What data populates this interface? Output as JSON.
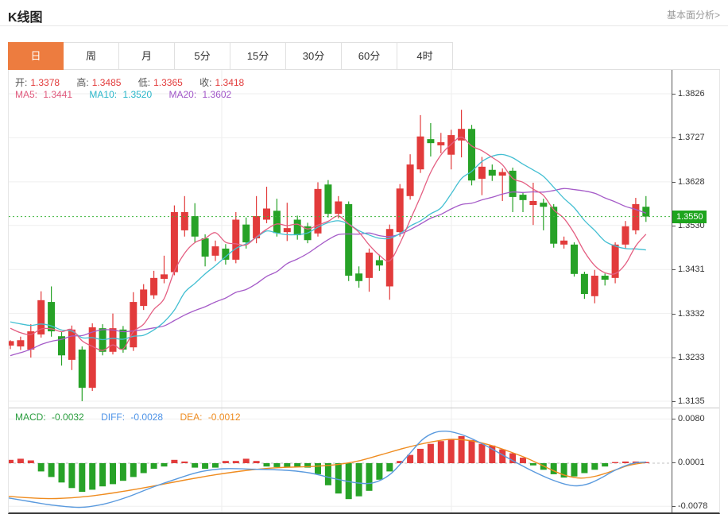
{
  "header": {
    "title": "K线图",
    "link": "基本面分析>"
  },
  "tabs": {
    "items": [
      "日",
      "周",
      "月",
      "5分",
      "15分",
      "30分",
      "60分",
      "4时"
    ],
    "active_index": 0
  },
  "ohlc_bar": {
    "open_label": "开:",
    "open": "1.3378",
    "high_label": "高:",
    "high": "1.3485",
    "low_label": "低:",
    "low": "1.3365",
    "close_label": "收:",
    "close": "1.3418"
  },
  "ma_bar": {
    "ma5_label": "MA5:",
    "ma5": "1.3441",
    "ma10_label": "MA10:",
    "ma10": "1.3520",
    "ma20_label": "MA20:",
    "ma20": "1.3602"
  },
  "macd_bar": {
    "macd_label": "MACD:",
    "macd": "-0.0032",
    "diff_label": "DIFF:",
    "diff": "-0.0028",
    "dea_label": "DEA:",
    "dea": "-0.0012"
  },
  "colors": {
    "up": "#e23b3b",
    "down": "#27a227",
    "ma5": "#e45f82",
    "ma10": "#43bfd2",
    "ma20": "#a55bc8",
    "ma5_text": "#e05a7d",
    "ma10_text": "#2ab6c9",
    "ma20_text": "#a156c8",
    "macd_text": "#2b9e3f",
    "diff_text": "#4f94e8",
    "dea_text": "#ef8c20",
    "diff_line": "#5a9ade",
    "dea_line": "#ef8c20",
    "price_line": "#3db53d",
    "price_badge": "#1ea51e",
    "grid": "#efefef",
    "vgrid": "#ececec",
    "zero_dash": "#c0c0c0",
    "tab_active": "#ed7c3f",
    "value_red": "#e23b3b"
  },
  "chart_data": {
    "type": "candlestick+macd",
    "title": "K线图 (daily K-line with MA5/MA10/MA20 and MACD)",
    "price_axis": {
      "ticks": [
        1.3826,
        1.3727,
        1.3628,
        1.353,
        1.3431,
        1.3332,
        1.3233,
        1.3135
      ],
      "current_price": 1.355,
      "grid": true,
      "position": "right"
    },
    "macd_axis": {
      "ticks": [
        0.008,
        0.0001,
        -0.0078
      ],
      "position": "right"
    },
    "v_gridlines_x": [
      268,
      557
    ],
    "candles_format": [
      "open",
      "high",
      "low",
      "close"
    ],
    "candles": [
      [
        1.326,
        1.3272,
        1.3252,
        1.327
      ],
      [
        1.3258,
        1.328,
        1.325,
        1.3272
      ],
      [
        1.3251,
        1.3308,
        1.3233,
        1.3292
      ],
      [
        1.3285,
        1.3382,
        1.3278,
        1.3362
      ],
      [
        1.3358,
        1.3393,
        1.328,
        1.3292
      ],
      [
        1.3281,
        1.3292,
        1.3215,
        1.3238
      ],
      [
        1.3228,
        1.3305,
        1.3205,
        1.3296
      ],
      [
        1.3251,
        1.3258,
        1.3135,
        1.3165
      ],
      [
        1.3165,
        1.331,
        1.3158,
        1.3301
      ],
      [
        1.3299,
        1.3308,
        1.3238,
        1.3246
      ],
      [
        1.3246,
        1.3332,
        1.324,
        1.3299
      ],
      [
        1.3296,
        1.3304,
        1.3244,
        1.3251
      ],
      [
        1.3256,
        1.338,
        1.3248,
        1.3358
      ],
      [
        1.3349,
        1.3398,
        1.334,
        1.3386
      ],
      [
        1.3373,
        1.3428,
        1.3365,
        1.3412
      ],
      [
        1.341,
        1.3462,
        1.34,
        1.342
      ],
      [
        1.3425,
        1.3575,
        1.3418,
        1.356
      ],
      [
        1.3519,
        1.3596,
        1.3505,
        1.356
      ],
      [
        1.3551,
        1.358,
        1.3492,
        1.3505
      ],
      [
        1.3501,
        1.351,
        1.3438,
        1.346
      ],
      [
        1.3462,
        1.3496,
        1.345,
        1.3483
      ],
      [
        1.3478,
        1.3488,
        1.3442,
        1.3453
      ],
      [
        1.3453,
        1.356,
        1.3445,
        1.3543
      ],
      [
        1.3532,
        1.3548,
        1.3478,
        1.3492
      ],
      [
        1.3501,
        1.3596,
        1.349,
        1.3551
      ],
      [
        1.3543,
        1.3617,
        1.3535,
        1.3568
      ],
      [
        1.3563,
        1.359,
        1.3505,
        1.3513
      ],
      [
        1.3515,
        1.3581,
        1.3495,
        1.3524
      ],
      [
        1.3543,
        1.3552,
        1.3498,
        1.3508
      ],
      [
        1.3528,
        1.3536,
        1.349,
        1.3497
      ],
      [
        1.3512,
        1.3627,
        1.3505,
        1.3612
      ],
      [
        1.3622,
        1.3632,
        1.3548,
        1.3556
      ],
      [
        1.3556,
        1.3596,
        1.3546,
        1.3584
      ],
      [
        1.3578,
        1.3584,
        1.3405,
        1.3417
      ],
      [
        1.3422,
        1.3438,
        1.339,
        1.3405
      ],
      [
        1.3412,
        1.3478,
        1.3381,
        1.3469
      ],
      [
        1.3452,
        1.3464,
        1.3428,
        1.344
      ],
      [
        1.3393,
        1.3532,
        1.3363,
        1.3522
      ],
      [
        1.3515,
        1.3623,
        1.3505,
        1.3613
      ],
      [
        1.3596,
        1.369,
        1.3588,
        1.3667
      ],
      [
        1.3656,
        1.3778,
        1.3648,
        1.373
      ],
      [
        1.3724,
        1.376,
        1.3685,
        1.3715
      ],
      [
        1.371,
        1.3738,
        1.3692,
        1.3717
      ],
      [
        1.3689,
        1.3745,
        1.3656,
        1.3733
      ],
      [
        1.3721,
        1.379,
        1.3683,
        1.3747
      ],
      [
        1.3747,
        1.3756,
        1.362,
        1.3631
      ],
      [
        1.3635,
        1.3684,
        1.3598,
        1.3662
      ],
      [
        1.3655,
        1.3667,
        1.363,
        1.3642
      ],
      [
        1.3642,
        1.3658,
        1.3585,
        1.365
      ],
      [
        1.3653,
        1.366,
        1.356,
        1.3594
      ],
      [
        1.3599,
        1.3605,
        1.356,
        1.3587
      ],
      [
        1.3576,
        1.3626,
        1.3531,
        1.3585
      ],
      [
        1.3581,
        1.359,
        1.3519,
        1.3572
      ],
      [
        1.3572,
        1.3578,
        1.348,
        1.3489
      ],
      [
        1.3487,
        1.3505,
        1.3478,
        1.3496
      ],
      [
        1.3487,
        1.3492,
        1.3415,
        1.3421
      ],
      [
        1.3421,
        1.3426,
        1.3365,
        1.3376
      ],
      [
        1.3371,
        1.343,
        1.3355,
        1.3417
      ],
      [
        1.3417,
        1.3422,
        1.3395,
        1.3408
      ],
      [
        1.3412,
        1.3492,
        1.34,
        1.3487
      ],
      [
        1.3487,
        1.354,
        1.3478,
        1.3528
      ],
      [
        1.3519,
        1.3592,
        1.351,
        1.3578
      ],
      [
        1.3572,
        1.3596,
        1.3538,
        1.355
      ]
    ],
    "ma_periods": [
      5,
      10,
      20
    ],
    "ma_seed_closes": [
      1.3135,
      1.3138,
      1.3142,
      1.3145,
      1.3148,
      1.315,
      1.3148,
      1.3145,
      1.3142,
      1.314,
      1.3315,
      1.332,
      1.3325,
      1.333,
      1.3335,
      1.333,
      1.3322,
      1.3312,
      1.33,
      1.329
    ],
    "macd_hist": [
      0.0006,
      0.0008,
      0.0005,
      -0.0015,
      -0.0025,
      -0.0035,
      -0.0045,
      -0.0052,
      -0.0048,
      -0.0042,
      -0.0038,
      -0.0032,
      -0.0025,
      -0.0018,
      -0.001,
      -0.0006,
      0.0006,
      0.0003,
      -0.0008,
      -0.001,
      -0.0008,
      0.0004,
      0.0004,
      0.0008,
      0.0004,
      -0.0006,
      -0.0007,
      -0.0007,
      -0.0007,
      -0.0008,
      -0.002,
      -0.004,
      -0.0055,
      -0.0065,
      -0.006,
      -0.005,
      -0.003,
      -0.0015,
      0.0004,
      0.0015,
      0.0026,
      0.0035,
      0.004,
      0.0044,
      0.0049,
      0.0042,
      0.0035,
      0.0032,
      0.0025,
      0.0018,
      0.001,
      -0.0004,
      -0.0012,
      -0.002,
      -0.0026,
      -0.0024,
      -0.0018,
      -0.0012,
      -0.0006,
      0.0002,
      0.0003,
      0.0003,
      0.0002
    ],
    "diff_line": [
      [
        0,
        -0.0063
      ],
      [
        25,
        -0.0069
      ],
      [
        55,
        -0.0076
      ],
      [
        90,
        -0.008
      ],
      [
        120,
        -0.0074
      ],
      [
        150,
        -0.0061
      ],
      [
        180,
        -0.0044
      ],
      [
        210,
        -0.0029
      ],
      [
        240,
        -0.0016
      ],
      [
        270,
        -0.001
      ],
      [
        310,
        -0.0011
      ],
      [
        350,
        -0.0013
      ],
      [
        380,
        -0.0018
      ],
      [
        410,
        -0.0028
      ],
      [
        440,
        -0.0036
      ],
      [
        460,
        -0.0035
      ],
      [
        480,
        -0.002
      ],
      [
        500,
        0.001
      ],
      [
        520,
        0.0042
      ],
      [
        535,
        0.0055
      ],
      [
        550,
        0.0058
      ],
      [
        565,
        0.0054
      ],
      [
        580,
        0.0046
      ],
      [
        600,
        0.0032
      ],
      [
        620,
        0.0016
      ],
      [
        640,
        0.0
      ],
      [
        660,
        -0.0015
      ],
      [
        680,
        -0.0028
      ],
      [
        700,
        -0.0038
      ],
      [
        715,
        -0.0041
      ],
      [
        730,
        -0.0037
      ],
      [
        745,
        -0.0027
      ],
      [
        760,
        -0.0015
      ],
      [
        775,
        -0.0005
      ],
      [
        790,
        0.0001
      ],
      [
        802,
        0.0002
      ]
    ],
    "dea_line": [
      [
        0,
        -0.006
      ],
      [
        30,
        -0.0063
      ],
      [
        60,
        -0.0064
      ],
      [
        100,
        -0.006
      ],
      [
        140,
        -0.0052
      ],
      [
        180,
        -0.0042
      ],
      [
        220,
        -0.0031
      ],
      [
        260,
        -0.0021
      ],
      [
        300,
        -0.0013
      ],
      [
        340,
        -0.0008
      ],
      [
        380,
        -0.0006
      ],
      [
        410,
        -0.0003
      ],
      [
        440,
        0.0004
      ],
      [
        470,
        0.0016
      ],
      [
        500,
        0.0028
      ],
      [
        530,
        0.0038
      ],
      [
        555,
        0.0043
      ],
      [
        580,
        0.0041
      ],
      [
        605,
        0.0033
      ],
      [
        630,
        0.0021
      ],
      [
        655,
        0.0007
      ],
      [
        680,
        -0.001
      ],
      [
        700,
        -0.0022
      ],
      [
        720,
        -0.0027
      ],
      [
        740,
        -0.0023
      ],
      [
        760,
        -0.0014
      ],
      [
        780,
        -0.0004
      ],
      [
        800,
        0.0001
      ]
    ]
  }
}
